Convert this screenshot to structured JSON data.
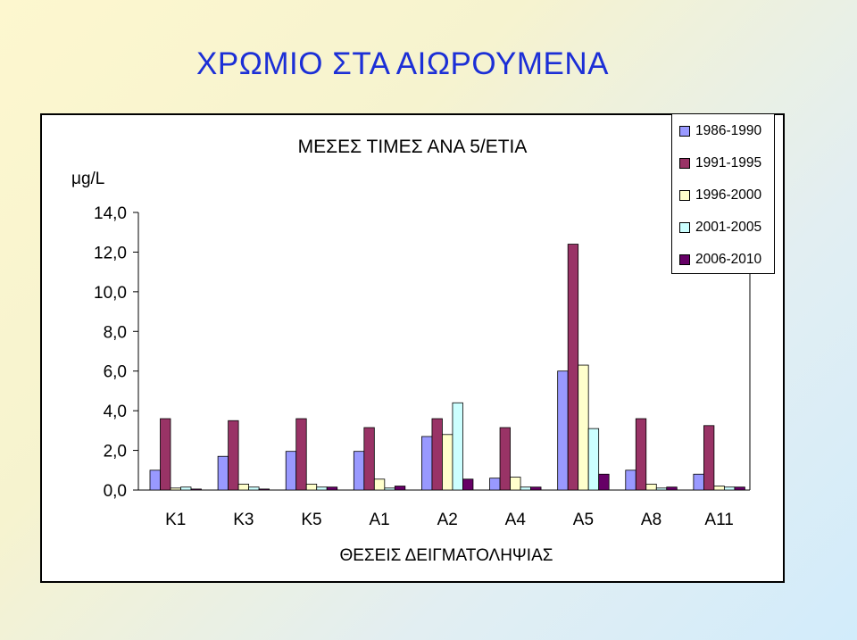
{
  "slide": {
    "title": "ΧΡΩΜΙΟ ΣΤΑ ΑΙΩΡΟΥΜΕΝΑ"
  },
  "chart_data": {
    "type": "bar",
    "title": "ΜΕΣΕΣ ΤΙΜΕΣ ΑΝΑ 5/ΕΤΙΑ",
    "unit": "μg/L",
    "xlabel": "ΘΕΣΕΙΣ ΔΕΙΓΜΑΤΟΛΗΨΙΑΣ",
    "ylabel": "",
    "ylim": [
      0,
      14
    ],
    "yticks": [
      "0,0",
      "2,0",
      "4,0",
      "6,0",
      "8,0",
      "10,0",
      "12,0",
      "14,0"
    ],
    "ytick_values": [
      0,
      2,
      4,
      6,
      8,
      10,
      12,
      14
    ],
    "grid": false,
    "legend_position": "top-right",
    "categories": [
      "K1",
      "K3",
      "K5",
      "A1",
      "A2",
      "A4",
      "A5",
      "A8",
      "A11"
    ],
    "series": [
      {
        "name": "1986-1990",
        "color": "#9999ff",
        "values": [
          1.0,
          1.7,
          1.95,
          1.95,
          2.7,
          0.6,
          6.0,
          1.0,
          0.8
        ]
      },
      {
        "name": "1991-1995",
        "color": "#993366",
        "values": [
          3.6,
          3.5,
          3.6,
          3.15,
          3.6,
          3.15,
          12.4,
          3.6,
          3.25
        ]
      },
      {
        "name": "1996-2000",
        "color": "#ffffcc",
        "values": [
          0.1,
          0.3,
          0.3,
          0.55,
          2.8,
          0.65,
          6.3,
          0.3,
          0.2
        ]
      },
      {
        "name": "2001-2005",
        "color": "#ccffff",
        "values": [
          0.15,
          0.15,
          0.15,
          0.1,
          4.4,
          0.15,
          3.1,
          0.1,
          0.15
        ]
      },
      {
        "name": "2006-2010",
        "color": "#660066",
        "values": [
          0.05,
          0.05,
          0.15,
          0.2,
          0.55,
          0.15,
          0.8,
          0.15,
          0.15
        ]
      }
    ]
  }
}
